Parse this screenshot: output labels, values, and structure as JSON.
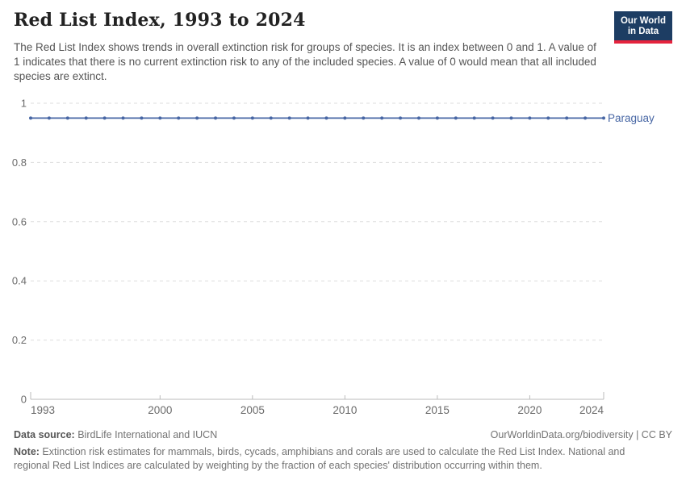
{
  "header": {
    "title": "Red List Index, 1993 to 2024",
    "subtitle": "The Red List Index shows trends in overall extinction risk for groups of species. It is an index between 0 and 1. A value of 1 indicates that there is no current extinction risk to any of the included species. A value of 0 would mean that all included species are extinct.",
    "logo": {
      "line1": "Our World",
      "line2": "in Data"
    }
  },
  "chart_data": {
    "type": "line",
    "title": "Red List Index, 1993 to 2024",
    "xlabel": "",
    "ylabel": "",
    "xlim": [
      1993,
      2024
    ],
    "ylim": [
      0,
      1
    ],
    "xticks": [
      1993,
      2000,
      2005,
      2010,
      2015,
      2020,
      2024
    ],
    "yticks": [
      0,
      0.2,
      0.4,
      0.6,
      0.8,
      1
    ],
    "grid": "horizontal-dashed",
    "legend_position": "end-of-line-label",
    "x": [
      1993,
      1994,
      1995,
      1996,
      1997,
      1998,
      1999,
      2000,
      2001,
      2002,
      2003,
      2004,
      2005,
      2006,
      2007,
      2008,
      2009,
      2010,
      2011,
      2012,
      2013,
      2014,
      2015,
      2016,
      2017,
      2018,
      2019,
      2020,
      2021,
      2022,
      2023,
      2024
    ],
    "series": [
      {
        "name": "Paraguay",
        "color": "#4766A4",
        "values": [
          0.95,
          0.95,
          0.95,
          0.95,
          0.95,
          0.95,
          0.95,
          0.95,
          0.95,
          0.95,
          0.95,
          0.95,
          0.95,
          0.95,
          0.95,
          0.95,
          0.95,
          0.95,
          0.95,
          0.95,
          0.95,
          0.95,
          0.95,
          0.95,
          0.95,
          0.95,
          0.95,
          0.95,
          0.95,
          0.95,
          0.95,
          0.95
        ]
      }
    ],
    "colors": {
      "grid": "#dddddd",
      "axis": "#bbbbbb",
      "tick_label": "#6b6b6b"
    }
  },
  "footer": {
    "datasource_label": "Data source:",
    "datasource_value": " BirdLife International and IUCN",
    "link": "OurWorldinData.org/biodiversity | CC BY",
    "note_label": "Note:",
    "note_value": " Extinction risk estimates for mammals, birds, cycads, amphibians and corals are used to calculate the Red List Index. National and regional Red List Indices are calculated by weighting by the fraction of each species' distribution occurring within them."
  }
}
